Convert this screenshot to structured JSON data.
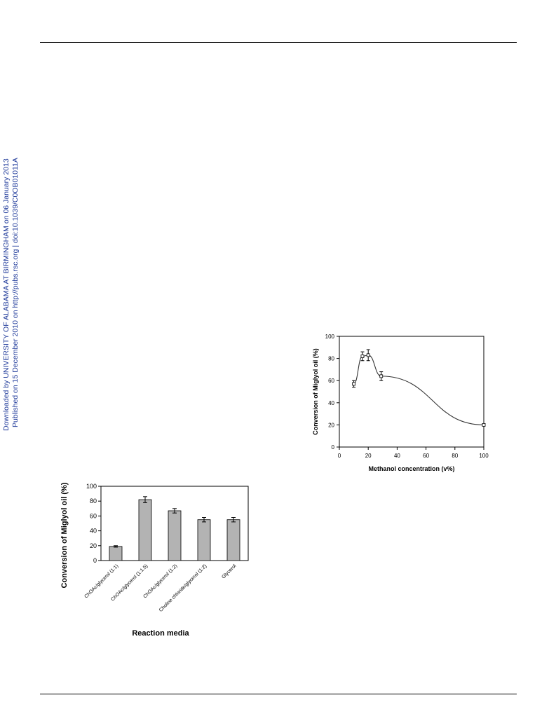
{
  "watermark": {
    "line1": "Downloaded by UNIVERSITY OF ALABAMA AT BIRMINGHAM on 06 January 2013",
    "line2": "Published on 15 December 2010 on http://pubs.rsc.org | doi:10.1039/C0OB01011A",
    "color": "#1f3a9a"
  },
  "chart_data": [
    {
      "type": "line",
      "title": "",
      "xlabel": "Methanol concentration (v%)",
      "ylabel": "Conversion of Miglyol oil (%)",
      "xlim": [
        0,
        100
      ],
      "ylim": [
        0,
        100
      ],
      "xticks": [
        "0",
        "20",
        "40",
        "60",
        "80",
        "100"
      ],
      "yticks": [
        "0",
        "20",
        "40",
        "60",
        "80",
        "100"
      ],
      "x": [
        10,
        16,
        20,
        29,
        100
      ],
      "y": [
        57,
        82,
        83,
        64,
        20
      ],
      "err": [
        3,
        4,
        5,
        4,
        1
      ],
      "grid": false
    },
    {
      "type": "bar",
      "title": "",
      "xlabel": "Reaction media",
      "ylabel": "Conversion of Miglyol oil (%)",
      "ylim": [
        0,
        100
      ],
      "yticks": [
        "0",
        "20",
        "40",
        "60",
        "80",
        "100"
      ],
      "categories": [
        "ChOAc/glycerol (1:1)",
        "ChOAc/glycerol (1:1.5)",
        "ChOAc/glycerol (1:2)",
        "Choline chloride/glycerol (1:2)",
        "Glycerol"
      ],
      "values": [
        19,
        82,
        67,
        55,
        55
      ],
      "err": [
        1,
        4,
        3,
        3,
        3
      ],
      "bar_color": "#b3b3b3",
      "grid": false
    }
  ]
}
